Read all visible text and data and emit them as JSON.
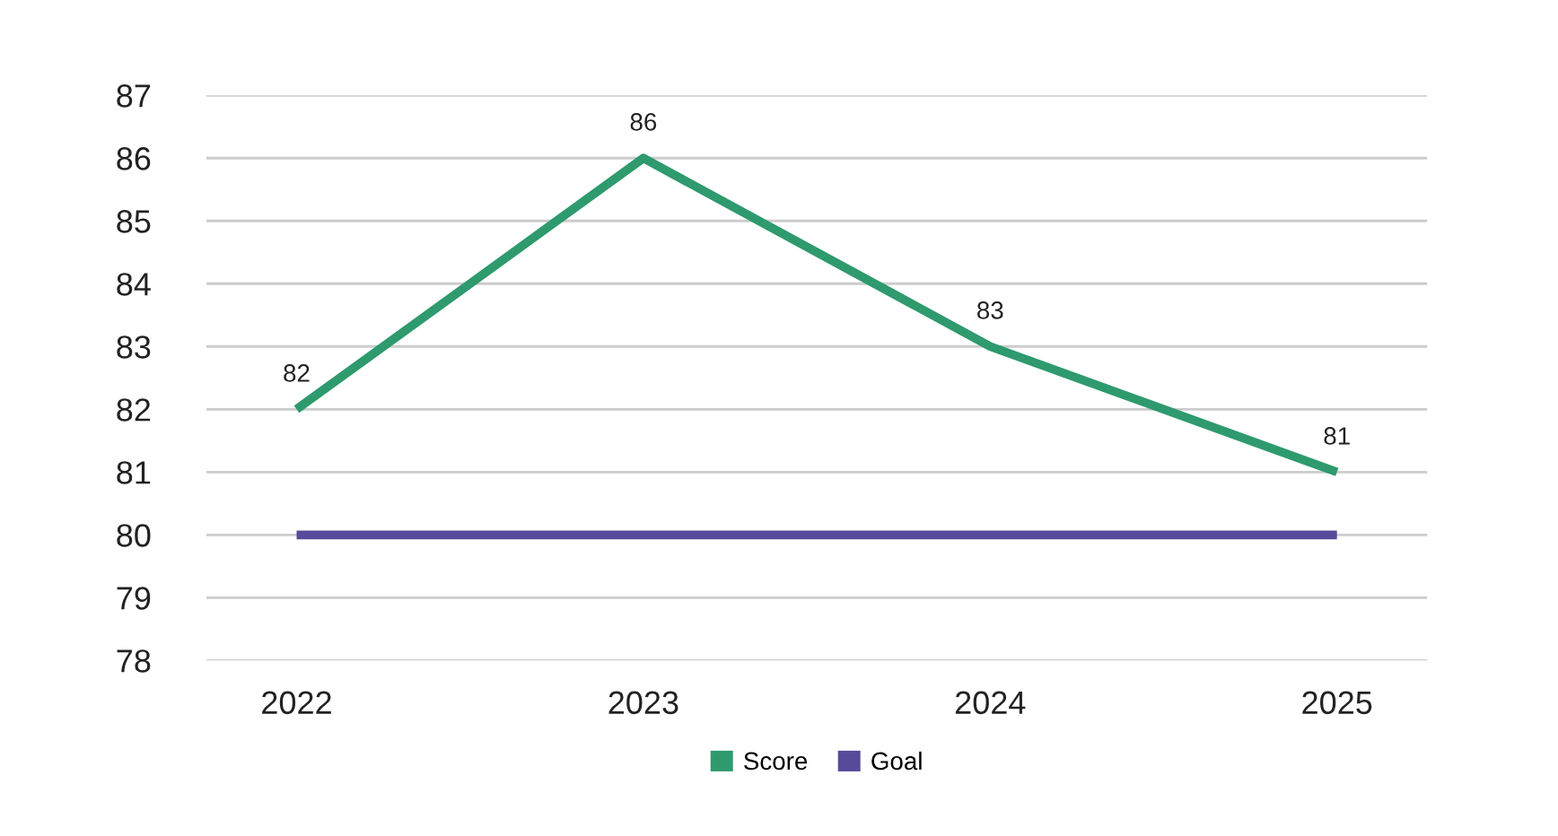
{
  "chart_data": {
    "type": "line",
    "categories": [
      "2022",
      "2023",
      "2024",
      "2025"
    ],
    "series": [
      {
        "name": "Score",
        "color": "#2e9a6e",
        "values": [
          82,
          86,
          83,
          81
        ],
        "value_labels": [
          "82",
          "86",
          "83",
          "81"
        ]
      },
      {
        "name": "Goal",
        "color": "#574a9a",
        "values": [
          80,
          80,
          80,
          80
        ]
      }
    ],
    "ylim": [
      78,
      87
    ],
    "yticks": [
      78,
      79,
      80,
      81,
      82,
      83,
      84,
      85,
      86,
      87
    ],
    "grid": "y",
    "legend": "bottom",
    "marker": "none",
    "line_style": "solid"
  }
}
